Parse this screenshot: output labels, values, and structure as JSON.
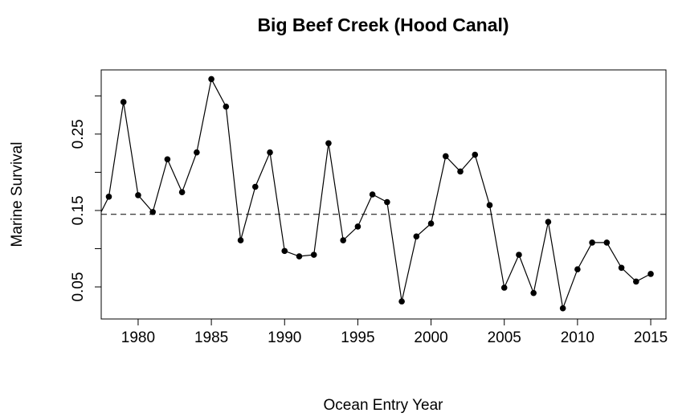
{
  "chart_data": {
    "type": "line",
    "title": "Big Beef Creek (Hood Canal)",
    "x_label": "Ocean Entry Year",
    "y_label": "Marine Survival",
    "x": [
      1977,
      1978,
      1979,
      1980,
      1981,
      1982,
      1983,
      1984,
      1985,
      1986,
      1987,
      1988,
      1989,
      1990,
      1991,
      1992,
      1993,
      1994,
      1995,
      1996,
      1997,
      1998,
      1999,
      2000,
      2001,
      2002,
      2003,
      2004,
      2005,
      2006,
      2007,
      2008,
      2009,
      2010,
      2011,
      2012,
      2013,
      2014,
      2015
    ],
    "series": [
      {
        "name": "Marine Survival",
        "color": "#000000",
        "values": [
          0.13,
          0.168,
          0.292,
          0.17,
          0.148,
          0.217,
          0.174,
          0.226,
          0.322,
          0.286,
          0.111,
          0.181,
          0.226,
          0.097,
          0.09,
          0.092,
          0.238,
          0.111,
          0.129,
          0.171,
          0.161,
          0.031,
          0.116,
          0.133,
          0.221,
          0.201,
          0.223,
          0.157,
          0.049,
          0.092,
          0.042,
          0.135,
          0.022,
          0.073,
          0.108,
          0.108,
          0.075,
          0.057,
          0.067
        ]
      }
    ],
    "reference_line": 0.145,
    "xlim": [
      1977.48,
      2016.04
    ],
    "ylim": [
      0.008,
      0.334
    ],
    "xticks": [
      1980,
      1985,
      1990,
      1995,
      2000,
      2005,
      2010,
      2015
    ],
    "yticks": [
      0.05,
      {
        "value": 0.1,
        "label": null
      },
      0.15,
      {
        "value": 0.2,
        "label": null
      },
      0.25,
      {
        "value": 0.3,
        "label": null
      }
    ]
  }
}
